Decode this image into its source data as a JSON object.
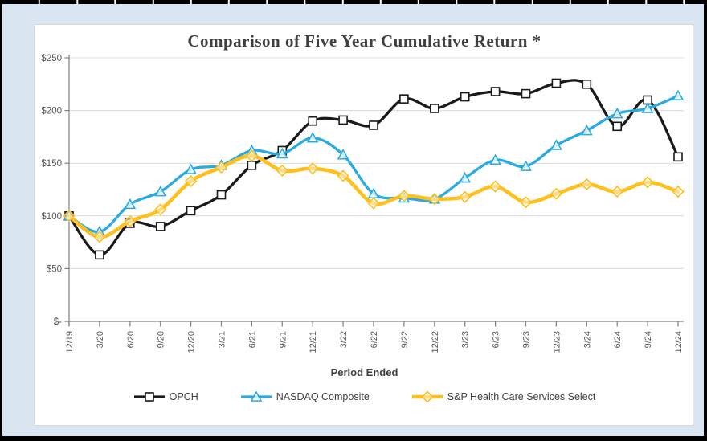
{
  "chart_data": {
    "type": "line",
    "title": "Comparison of Five Year Cumulative Return *",
    "xlabel": "Period Ended",
    "ylabel": "",
    "ylim": [
      0,
      250
    ],
    "grid": true,
    "legend_position": "bottom",
    "ytick_labels": [
      "$-",
      "$50",
      "$100",
      "$150",
      "$200",
      "$250"
    ],
    "ytick_values": [
      0,
      50,
      100,
      150,
      200,
      250
    ],
    "categories": [
      "12/19",
      "3/20",
      "6/20",
      "9/20",
      "12/20",
      "3/21",
      "6/21",
      "9/21",
      "12/21",
      "3/22",
      "6/22",
      "9/22",
      "12/22",
      "3/23",
      "6/23",
      "9/23",
      "12/23",
      "3/24",
      "6/24",
      "9/24",
      "12/24"
    ],
    "series": [
      {
        "name": "OPCH",
        "color": "#1a1a1a",
        "marker": "square",
        "line_width": 3.3,
        "values": [
          100,
          63,
          93,
          90,
          105,
          120,
          148,
          162,
          190,
          191,
          186,
          211,
          202,
          213,
          218,
          216,
          226,
          225,
          185,
          210,
          156
        ]
      },
      {
        "name": "NASDAQ Composite",
        "color": "#29abe2",
        "marker": "triangle",
        "line_width": 3.3,
        "values": [
          100,
          85,
          111,
          123,
          144,
          148,
          162,
          159,
          174,
          158,
          121,
          117,
          116,
          136,
          153,
          147,
          167,
          181,
          197,
          202,
          214
        ]
      },
      {
        "name": "S&P Health Care Services Select",
        "color": "#ffc01e",
        "marker": "diamond",
        "line_width": 4.5,
        "values": [
          100,
          80,
          95,
          106,
          133,
          146,
          157,
          143,
          145,
          138,
          112,
          119,
          116,
          118,
          128,
          113,
          121,
          130,
          123,
          132,
          123
        ]
      }
    ]
  },
  "colors": {
    "page_bg": "#d9e5f1",
    "card_bg": "#ffffff",
    "outer_border": "#000000",
    "grid_line": "#d9d9d9",
    "axis_line": "#808080",
    "tick_text": "#595959",
    "title_text": "#3f3f3f",
    "legend_text": "#404040"
  }
}
